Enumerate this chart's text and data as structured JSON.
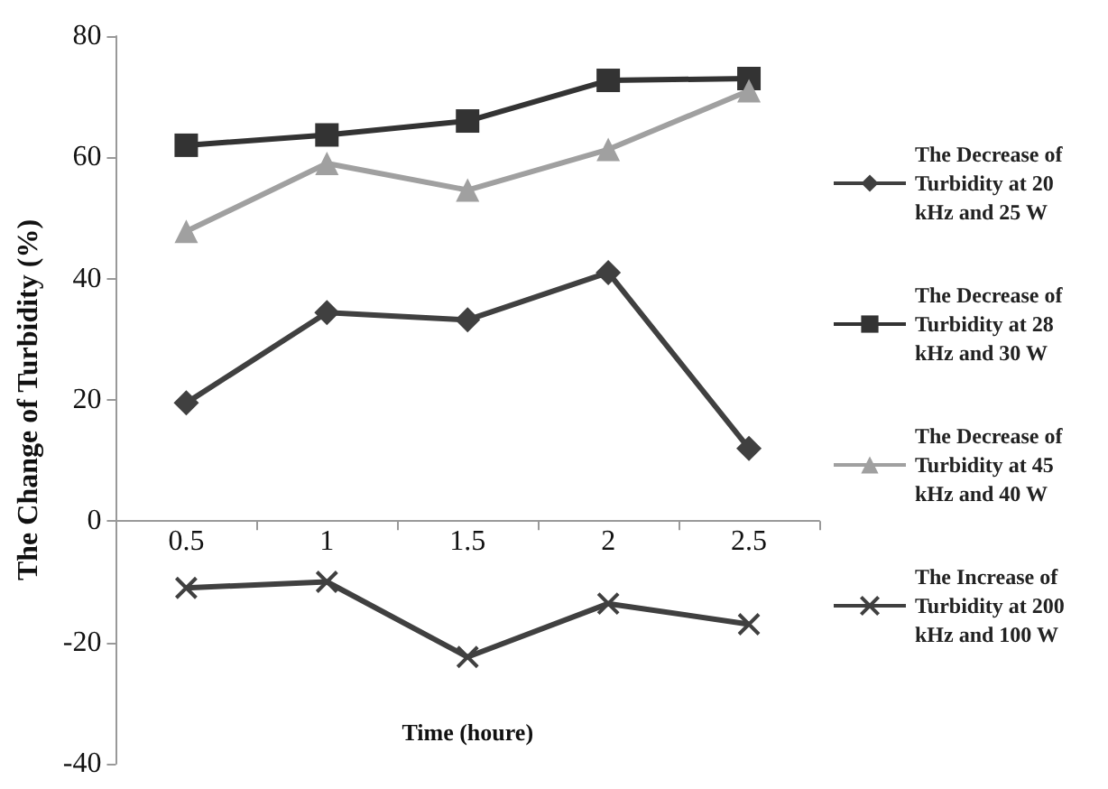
{
  "chart_data": {
    "type": "line",
    "xlabel": "Time (houre)",
    "ylabel": "The Change of Turbidity (%)",
    "categories": [
      "0.5",
      "1",
      "1.5",
      "2",
      "2.5"
    ],
    "series": [
      {
        "name": "The Decrease of Turbidity at 20 kHz and 25 W",
        "color": "#404040",
        "marker": "diamond",
        "values": [
          19.5,
          34.4,
          33.2,
          41,
          12
        ]
      },
      {
        "name": "The Decrease of Turbidity at 28 kHz and 30 W",
        "color": "#333333",
        "marker": "square",
        "values": [
          62,
          63.7,
          66,
          72.7,
          73
        ]
      },
      {
        "name": "The Decrease of Turbidity at 45 kHz and 40 W",
        "color": "#a0a0a0",
        "marker": "triangle",
        "values": [
          47.8,
          59,
          54.6,
          61.3,
          71
        ]
      },
      {
        "name": "The Increase of Turbidity at 200 kHz and 100 W",
        "color": "#404040",
        "marker": "cross",
        "values": [
          -11,
          -10,
          -22.4,
          -13.6,
          -17
        ]
      }
    ],
    "ylim": [
      -40,
      80
    ],
    "yticks": [
      -40,
      -20,
      0,
      20,
      40,
      60,
      80
    ],
    "legend": "right"
  }
}
